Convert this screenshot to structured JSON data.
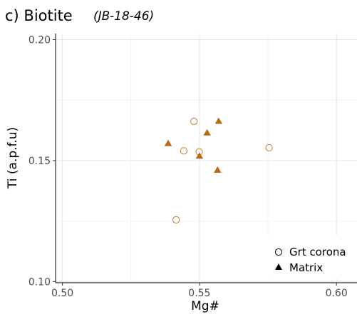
{
  "chart_data": {
    "type": "scatter",
    "title": "c) Biotite",
    "subtitle": "(JB-18-46)",
    "xlabel": "Mg#",
    "ylabel": "Ti (a.p.f.u)",
    "xlim": [
      0.4975,
      0.6075
    ],
    "ylim": [
      0.0995,
      0.2025
    ],
    "x_ticks": [
      {
        "value": 0.5,
        "label": "0.50"
      },
      {
        "value": 0.55,
        "label": "0.55"
      },
      {
        "value": 0.6,
        "label": "0.60"
      }
    ],
    "y_ticks": [
      {
        "value": 0.1,
        "label": "0.10"
      },
      {
        "value": 0.15,
        "label": "0.15"
      },
      {
        "value": 0.2,
        "label": "0.20"
      }
    ],
    "grid": true,
    "legend_position": "bottom-right",
    "series": [
      {
        "name": "Grt corona",
        "marker": "open-circle",
        "color": "#c87a20",
        "points": [
          {
            "x": 0.5415,
            "y": 0.1255
          },
          {
            "x": 0.5443,
            "y": 0.154
          },
          {
            "x": 0.548,
            "y": 0.1662
          },
          {
            "x": 0.5499,
            "y": 0.1536
          },
          {
            "x": 0.5754,
            "y": 0.1553
          }
        ]
      },
      {
        "name": "Matrix",
        "marker": "filled-triangle",
        "color": "#b86a14",
        "points": [
          {
            "x": 0.5386,
            "y": 0.157
          },
          {
            "x": 0.55,
            "y": 0.1518
          },
          {
            "x": 0.5528,
            "y": 0.1614
          },
          {
            "x": 0.5566,
            "y": 0.146
          },
          {
            "x": 0.557,
            "y": 0.1662
          }
        ]
      }
    ]
  }
}
